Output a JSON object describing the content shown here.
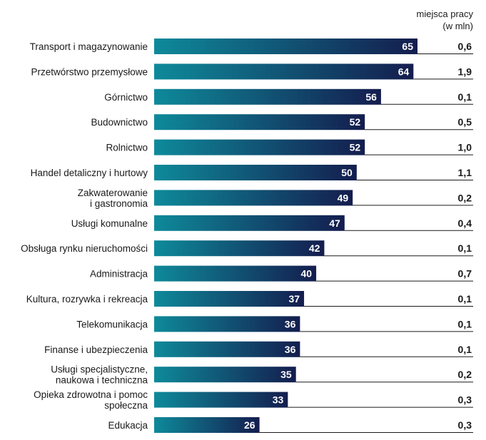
{
  "chart_data": {
    "type": "bar",
    "orientation": "horizontal",
    "categories": [
      [
        "Transport i magazynowanie"
      ],
      [
        "Przetwórstwo przemysłowe"
      ],
      [
        "Górnictwo"
      ],
      [
        "Budownictwo"
      ],
      [
        "Rolnictwo"
      ],
      [
        "Handel detaliczny i hurtowy"
      ],
      [
        "Zakwaterowanie",
        "i gastronomia"
      ],
      [
        "Usługi komunalne"
      ],
      [
        "Obsługa rynku nieruchomości"
      ],
      [
        "Administracja"
      ],
      [
        "Kultura, rozrywka i rekreacja"
      ],
      [
        "Telekomunikacja"
      ],
      [
        "Finanse i ubezpieczenia"
      ],
      [
        "Usługi specjalistyczne,",
        "naukowa i techniczna"
      ],
      [
        "Opieka zdrowotna i pomoc",
        "społeczna"
      ],
      [
        "Edukacja"
      ]
    ],
    "values": [
      65,
      64,
      56,
      52,
      52,
      50,
      49,
      47,
      42,
      40,
      37,
      36,
      36,
      35,
      33,
      26
    ],
    "value_labels": [
      "65",
      "64",
      "56",
      "52",
      "52",
      "50",
      "49",
      "47",
      "42",
      "40",
      "37",
      "36",
      "36",
      "35",
      "33",
      "26"
    ],
    "xlim": [
      0,
      65
    ],
    "side_column": {
      "header": [
        "miejsca pracy",
        "(w mln)"
      ],
      "values": [
        "0,6",
        "1,9",
        "0,1",
        "0,5",
        "1,0",
        "1,1",
        "0,2",
        "0,4",
        "0,1",
        "0,7",
        "0,1",
        "0,1",
        "0,1",
        "0,2",
        "0,3",
        "0,3"
      ]
    },
    "colors": {
      "bar_start": "#0e8a9a",
      "bar_end": "#141d4e",
      "row_line": "#1a1a1a"
    }
  }
}
